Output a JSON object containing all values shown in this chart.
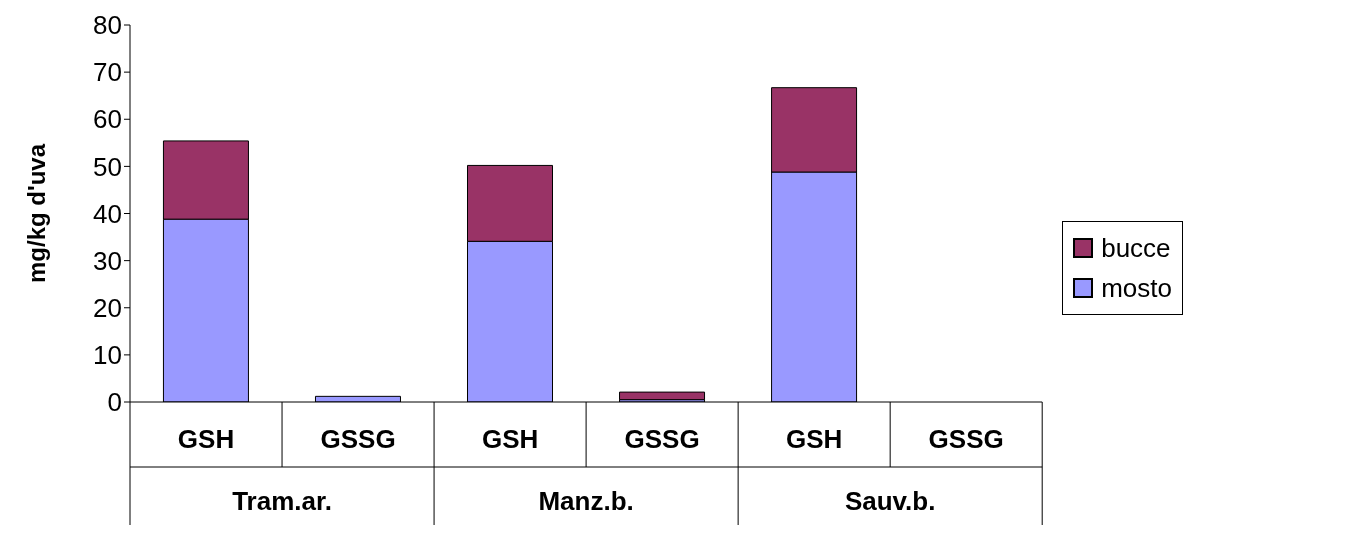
{
  "chart_data": {
    "type": "bar",
    "stacked": true,
    "ylabel": "mg/kg d'uva",
    "categories": [
      "GSH",
      "GSSG",
      "GSH",
      "GSSG",
      "GSH",
      "GSSG"
    ],
    "series": [
      {
        "name": "mosto",
        "color": "#9999ff",
        "values": [
          38.8,
          1.2,
          34.1,
          0.5,
          48.8,
          0
        ]
      },
      {
        "name": "bucce",
        "color": "#993366",
        "values": [
          16.6,
          0,
          16.1,
          1.6,
          17.9,
          0
        ]
      }
    ],
    "annotations": [
      "Tram.ar.",
      "Manz.b.",
      "Sauv.b."
    ],
    "ylim": [
      0,
      80
    ],
    "yticks": [
      0,
      10,
      20,
      30,
      40,
      50,
      60,
      70,
      80
    ],
    "grid": false,
    "legend": "right"
  }
}
